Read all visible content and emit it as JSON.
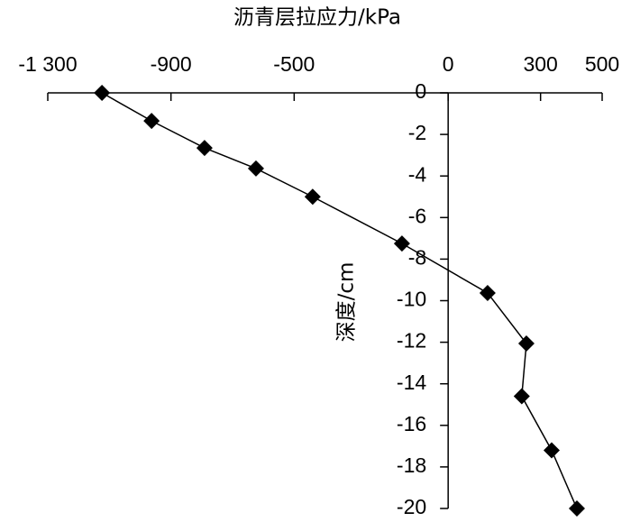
{
  "chart_data": {
    "type": "line",
    "title": "沥青层拉应力/kPa",
    "y_label": "深度/cm",
    "x": [
      -1124,
      -963,
      -791,
      -624,
      -440,
      -150,
      128,
      254,
      239,
      336,
      418
    ],
    "values": [
      0,
      -1.35,
      -2.65,
      -3.64,
      -5.0,
      -7.25,
      -9.63,
      -12.06,
      -14.6,
      -17.2,
      -20
    ],
    "color": "#000000",
    "xlim": [
      -1300,
      500
    ],
    "xticks": [
      {
        "value": -1300,
        "label": "-1 300"
      },
      -900,
      -500,
      0,
      300,
      500
    ],
    "ylim": [
      -20,
      0
    ],
    "yticks": [
      0,
      -2,
      -4,
      -6,
      -8,
      -10,
      -12,
      -14,
      -16,
      -18,
      -20
    ],
    "grid": false
  }
}
